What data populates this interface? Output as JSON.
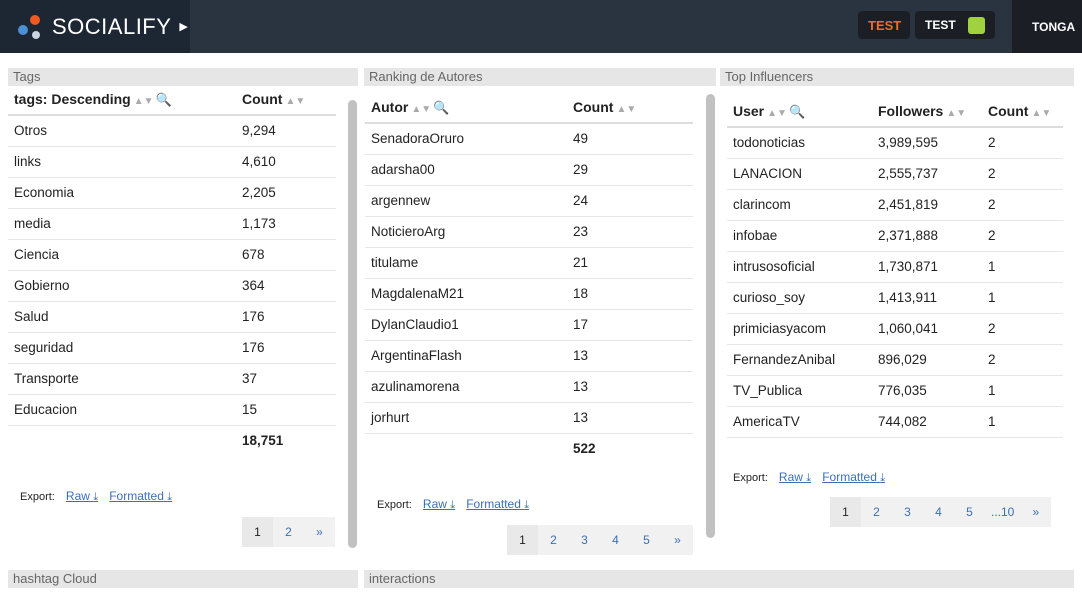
{
  "header": {
    "brand": "SOCIALIFY",
    "btn_test1": "TEST",
    "btn_test2": "TEST",
    "user": "TONGA"
  },
  "tags": {
    "title": "Tags",
    "col1": "tags: Descending",
    "col2": "Count",
    "rows": [
      {
        "name": "Otros",
        "count": "9,294"
      },
      {
        "name": "links",
        "count": "4,610"
      },
      {
        "name": "Economia",
        "count": "2,205"
      },
      {
        "name": "media",
        "count": "1,173"
      },
      {
        "name": "Ciencia",
        "count": "678"
      },
      {
        "name": "Gobierno",
        "count": "364"
      },
      {
        "name": "Salud",
        "count": "176"
      },
      {
        "name": "seguridad",
        "count": "176"
      },
      {
        "name": "Transporte",
        "count": "37"
      },
      {
        "name": "Educacion",
        "count": "15"
      }
    ],
    "total": "18,751",
    "export_label": "Export:",
    "raw": "Raw",
    "formatted": "Formatted",
    "pages": [
      "1",
      "2",
      "»"
    ]
  },
  "autores": {
    "title": "Ranking de Autores",
    "col1": "Autor",
    "col2": "Count",
    "rows": [
      {
        "name": "SenadoraOruro",
        "count": "49"
      },
      {
        "name": "adarsha00",
        "count": "29"
      },
      {
        "name": "argennew",
        "count": "24"
      },
      {
        "name": "NoticieroArg",
        "count": "23"
      },
      {
        "name": "titulame",
        "count": "21"
      },
      {
        "name": "MagdalenaM21",
        "count": "18"
      },
      {
        "name": "DylanClaudio1",
        "count": "17"
      },
      {
        "name": "ArgentinaFlash",
        "count": "13"
      },
      {
        "name": "azulinamorena",
        "count": "13"
      },
      {
        "name": "jorhurt",
        "count": "13"
      }
    ],
    "total": "522",
    "export_label": "Export:",
    "raw": "Raw",
    "formatted": "Formatted",
    "pages": [
      "1",
      "2",
      "3",
      "4",
      "5",
      "»"
    ]
  },
  "influencers": {
    "title": "Top Influencers",
    "col1": "User",
    "col2": "Followers",
    "col3": "Count",
    "rows": [
      {
        "user": "todonoticias",
        "followers": "3,989,595",
        "count": "2"
      },
      {
        "user": "LANACION",
        "followers": "2,555,737",
        "count": "2"
      },
      {
        "user": "clarincom",
        "followers": "2,451,819",
        "count": "2"
      },
      {
        "user": "infobae",
        "followers": "2,371,888",
        "count": "2"
      },
      {
        "user": "intrusosoficial",
        "followers": "1,730,871",
        "count": "1"
      },
      {
        "user": "curioso_soy",
        "followers": "1,413,911",
        "count": "1"
      },
      {
        "user": "primiciasyacom",
        "followers": "1,060,041",
        "count": "2"
      },
      {
        "user": "FernandezAnibal",
        "followers": "896,029",
        "count": "2"
      },
      {
        "user": "TV_Publica",
        "followers": "776,035",
        "count": "1"
      },
      {
        "user": "AmericaTV",
        "followers": "744,082",
        "count": "1"
      }
    ],
    "export_label": "Export:",
    "raw": "Raw",
    "formatted": "Formatted",
    "pages": [
      "1",
      "2",
      "3",
      "4",
      "5",
      "...10",
      "»"
    ]
  },
  "bottom": {
    "hashtag": "hashtag Cloud",
    "interactions": "interactions"
  }
}
